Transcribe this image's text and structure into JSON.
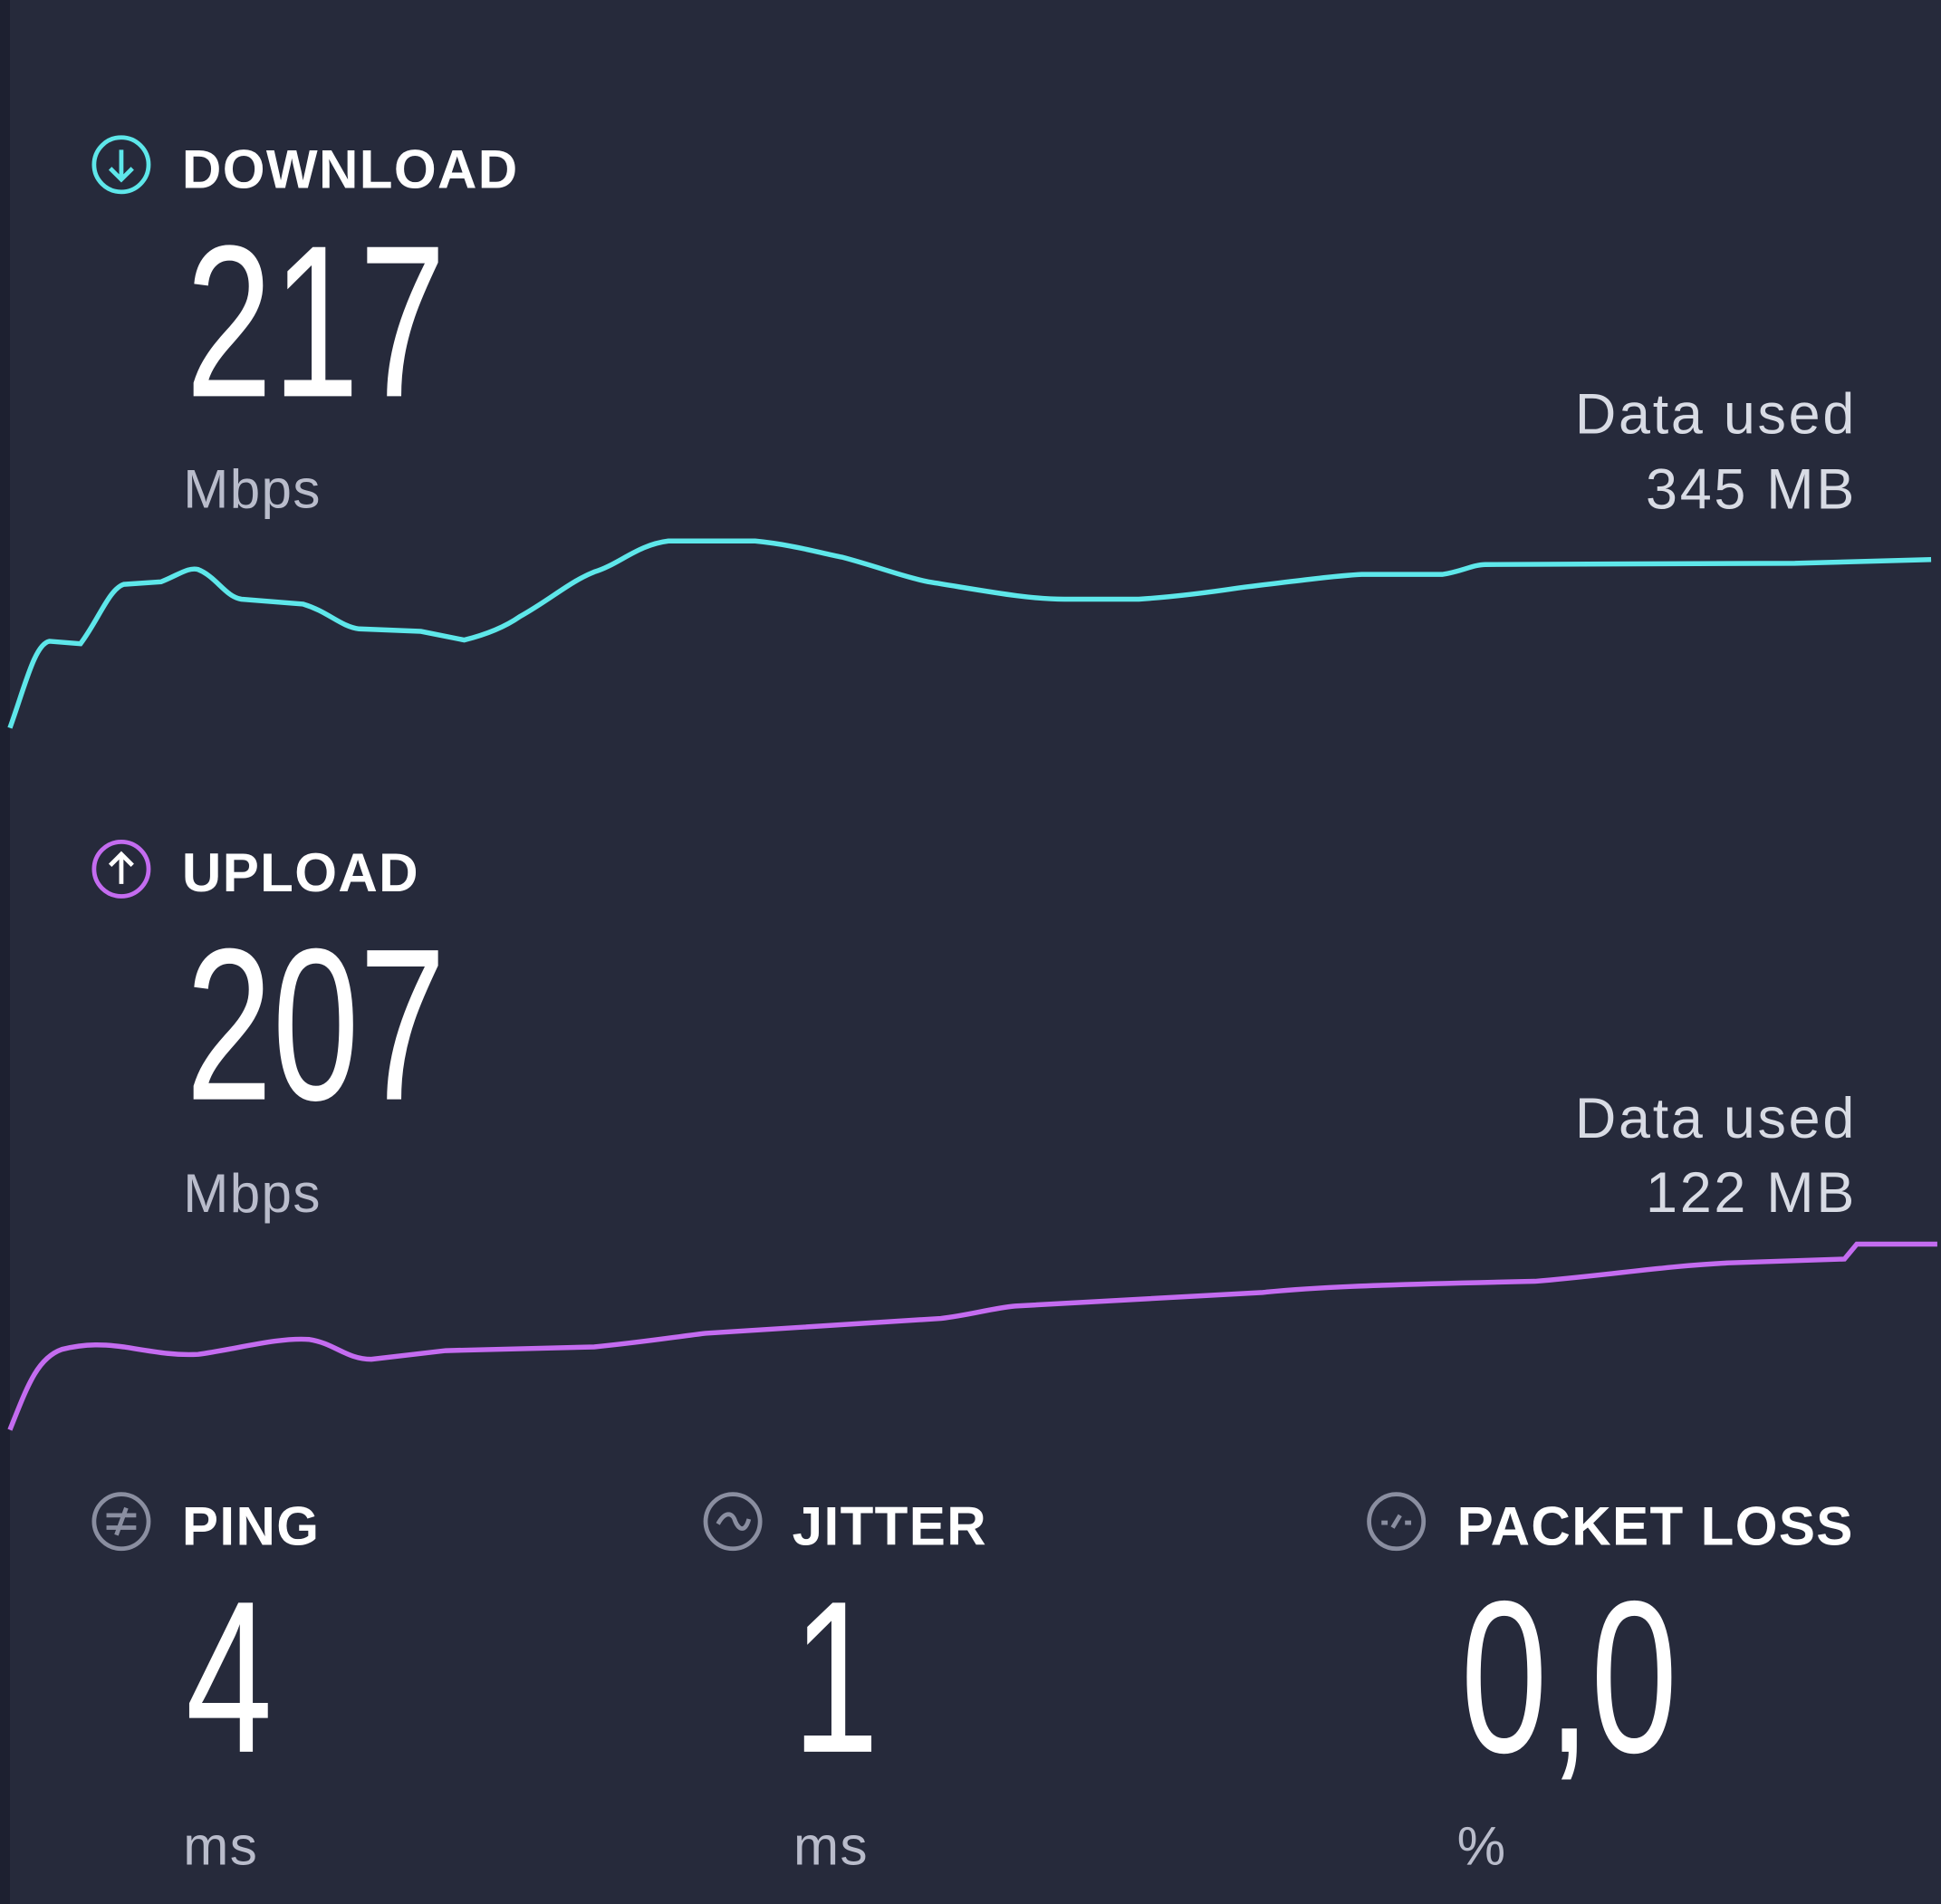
{
  "download": {
    "label": "DOWNLOAD",
    "value": "217",
    "unit": "Mbps",
    "data_used_label": "Data used",
    "data_used": "345 MB"
  },
  "upload": {
    "label": "UPLOAD",
    "value": "207",
    "unit": "Mbps",
    "data_used_label": "Data used",
    "data_used": "122 MB"
  },
  "ping": {
    "label": "PING",
    "value": "4",
    "unit": "ms"
  },
  "jitter": {
    "label": "JITTER",
    "value": "1",
    "unit": "ms"
  },
  "packet_loss": {
    "label": "PACKET LOSS",
    "value": "0,0",
    "unit": "%"
  }
}
